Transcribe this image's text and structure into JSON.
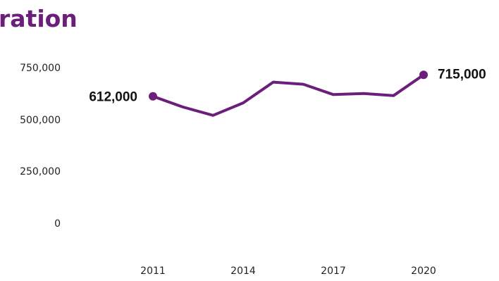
{
  "title": "ration",
  "colors": {
    "accent": "#6b1f7a",
    "text": "#222222"
  },
  "chart_data": {
    "type": "line",
    "title": "ration",
    "xlabel": "",
    "ylabel": "",
    "x": [
      2011,
      2012,
      2013,
      2014,
      2015,
      2016,
      2017,
      2018,
      2019,
      2020
    ],
    "series": [
      {
        "values": [
          612000,
          560000,
          520000,
          580000,
          680000,
          670000,
          620000,
          625000,
          615000,
          715000
        ]
      }
    ],
    "xlim": [
      2011,
      2020
    ],
    "ylim": [
      0,
      750000
    ],
    "xticks": [
      "2011",
      "2014",
      "2017",
      "2020"
    ],
    "yticks": [
      "750,000",
      "500,000",
      "250,000",
      "0"
    ],
    "data_labels": [
      "612,000",
      "715,000"
    ],
    "grid": false,
    "legend": "none"
  }
}
